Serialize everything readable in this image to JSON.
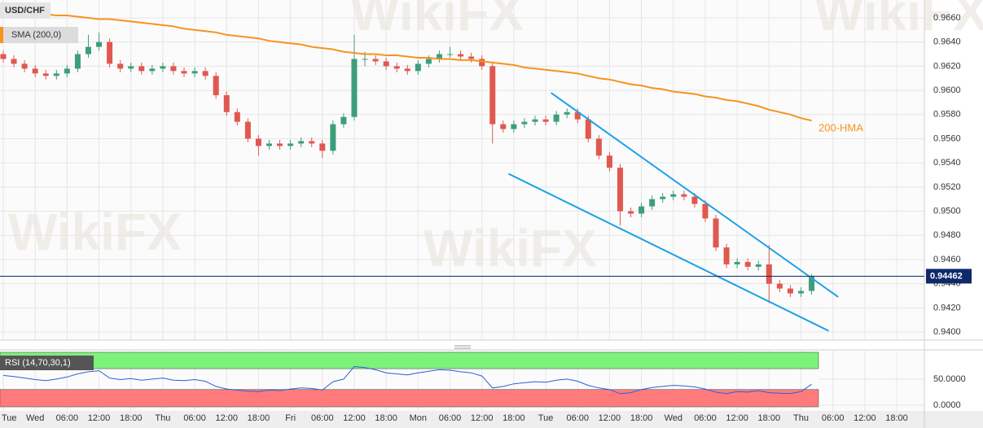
{
  "chart_data": [
    {
      "type": "candlestick",
      "title": "USD/CHF",
      "categories": [
        "Tue",
        null,
        null,
        "Wed",
        null,
        null,
        "06:00",
        null,
        null,
        "12:00",
        null,
        null,
        "18:00",
        null,
        null,
        "Thu",
        null,
        null,
        "06:00",
        null,
        null,
        "12:00",
        null,
        null,
        "18:00",
        null,
        null,
        "Fri",
        null,
        null,
        "06:00",
        null,
        null,
        "12:00",
        null,
        null,
        "18:00",
        null,
        null,
        "Mon",
        null,
        null,
        "06:00",
        null,
        null,
        "12:00",
        null,
        null,
        "18:00",
        null,
        null,
        "Tue",
        null,
        null,
        "06:00",
        null,
        null,
        "12:00",
        null,
        null,
        "18:00",
        null,
        null,
        "Wed",
        null,
        null,
        "06:00",
        null,
        null,
        "12:00",
        null,
        null,
        "18:00",
        null,
        null,
        "Thu",
        null,
        null,
        "06:00",
        null,
        null,
        "12:00",
        null,
        null,
        "18:00"
      ],
      "open": [
        0.963,
        0.9626,
        0.9622,
        0.9618,
        0.9614,
        0.9612,
        0.9614,
        0.9618,
        0.963,
        0.9636,
        0.964,
        0.9622,
        0.9618,
        0.962,
        0.9616,
        0.9618,
        0.962,
        0.9616,
        0.9614,
        0.9616,
        0.9612,
        0.9596,
        0.9582,
        0.9574,
        0.956,
        0.9554,
        0.9556,
        0.9554,
        0.9556,
        0.9558,
        0.9556,
        0.955,
        0.9572,
        0.9578,
        0.9626,
        0.9626,
        0.9624,
        0.962,
        0.9618,
        0.9616,
        0.9622,
        0.9626,
        0.963,
        0.963,
        0.9628,
        0.9626,
        0.962,
        0.9572,
        0.9568,
        0.9572,
        0.9574,
        0.9576,
        0.9574,
        0.958,
        0.9582,
        0.9576,
        0.956,
        0.9546,
        0.9536,
        0.95,
        0.9498,
        0.9504,
        0.951,
        0.9512,
        0.9514,
        0.9512,
        0.9506,
        0.9494,
        0.947,
        0.9456,
        0.9458,
        0.9454,
        0.9456,
        0.944,
        0.9436,
        0.9432,
        0.9434,
        null,
        null,
        null,
        null,
        null,
        null,
        null,
        null
      ],
      "high": [
        0.9633,
        0.9629,
        0.9625,
        0.9621,
        0.9617,
        0.9617,
        0.9621,
        0.9633,
        0.9646,
        0.9648,
        0.9643,
        0.9625,
        0.9623,
        0.9623,
        0.9621,
        0.9623,
        0.9623,
        0.9619,
        0.9619,
        0.9619,
        0.9615,
        0.9599,
        0.9585,
        0.9577,
        0.9563,
        0.9559,
        0.9559,
        0.9559,
        0.9561,
        0.9561,
        0.9559,
        0.9575,
        0.9581,
        0.9646,
        0.9632,
        0.9629,
        0.9627,
        0.9623,
        0.9621,
        0.9625,
        0.9629,
        0.9633,
        0.9636,
        0.9633,
        0.9631,
        0.9629,
        0.9623,
        0.9575,
        0.9575,
        0.9577,
        0.9579,
        0.9579,
        0.9583,
        0.9585,
        0.9585,
        0.9579,
        0.9563,
        0.9549,
        0.9539,
        0.9503,
        0.9507,
        0.9513,
        0.9515,
        0.9517,
        0.9517,
        0.9515,
        0.9509,
        0.9497,
        0.9473,
        0.9461,
        0.9461,
        0.9459,
        0.9472,
        0.9443,
        0.9439,
        0.9437,
        0.9448,
        null,
        null,
        null,
        null,
        null,
        null,
        null,
        null
      ],
      "low": [
        0.9623,
        0.9619,
        0.9615,
        0.9611,
        0.9609,
        0.9609,
        0.9611,
        0.9615,
        0.9627,
        0.9633,
        0.9619,
        0.9615,
        0.9615,
        0.9613,
        0.9613,
        0.9615,
        0.9613,
        0.9611,
        0.9611,
        0.9609,
        0.9593,
        0.9579,
        0.9571,
        0.9557,
        0.9546,
        0.9551,
        0.9551,
        0.9551,
        0.9553,
        0.9553,
        0.9544,
        0.9547,
        0.9569,
        0.9575,
        0.962,
        0.9621,
        0.9617,
        0.9615,
        0.9613,
        0.9613,
        0.9619,
        0.9623,
        0.9627,
        0.9625,
        0.9623,
        0.9617,
        0.9556,
        0.9565,
        0.9565,
        0.9569,
        0.9571,
        0.9571,
        0.9571,
        0.9577,
        0.9573,
        0.9557,
        0.9543,
        0.9533,
        0.9488,
        0.9495,
        0.9495,
        0.9501,
        0.9507,
        0.9509,
        0.9509,
        0.9503,
        0.9491,
        0.9467,
        0.9453,
        0.9453,
        0.9451,
        0.9451,
        0.9424,
        0.9433,
        0.9429,
        0.9429,
        0.9431,
        null,
        null,
        null,
        null,
        null,
        null,
        null,
        null
      ],
      "close": [
        0.9626,
        0.9622,
        0.9618,
        0.9614,
        0.9612,
        0.9614,
        0.9618,
        0.963,
        0.9636,
        0.964,
        0.9622,
        0.9618,
        0.962,
        0.9616,
        0.9618,
        0.962,
        0.9616,
        0.9614,
        0.9616,
        0.9612,
        0.9596,
        0.9582,
        0.9574,
        0.956,
        0.9554,
        0.9556,
        0.9554,
        0.9556,
        0.9558,
        0.9556,
        0.955,
        0.9572,
        0.9578,
        0.9626,
        0.9626,
        0.9624,
        0.962,
        0.9618,
        0.9616,
        0.9622,
        0.9626,
        0.963,
        0.963,
        0.9628,
        0.9626,
        0.962,
        0.9572,
        0.9568,
        0.9572,
        0.9574,
        0.9576,
        0.9574,
        0.958,
        0.9582,
        0.9576,
        0.956,
        0.9546,
        0.9536,
        0.95,
        0.9498,
        0.9504,
        0.951,
        0.9512,
        0.9514,
        0.9512,
        0.9506,
        0.9494,
        0.947,
        0.9456,
        0.9458,
        0.9454,
        0.9456,
        0.944,
        0.9436,
        0.9432,
        0.9434,
        0.94462,
        null,
        null,
        null,
        null,
        null,
        null,
        null,
        null
      ],
      "up_color": "#3d9e7a",
      "down_color": "#e0584f",
      "series": [
        {
          "name": "SMA (200,0)",
          "color": "#f7931e",
          "values": [
            0.9666,
            0.9665,
            0.9665,
            0.9664,
            0.9663,
            0.9662,
            0.9662,
            0.9661,
            0.966,
            0.9659,
            0.9659,
            0.9658,
            0.9657,
            0.9656,
            0.9655,
            0.9654,
            0.9653,
            0.9651,
            0.965,
            0.9649,
            0.9648,
            0.9646,
            0.9645,
            0.9644,
            0.9643,
            0.9641,
            0.964,
            0.9639,
            0.9638,
            0.9636,
            0.9635,
            0.9634,
            0.9632,
            0.9631,
            0.963,
            0.963,
            0.9629,
            0.9629,
            0.9628,
            0.9627,
            0.9627,
            0.9626,
            0.9626,
            0.9625,
            0.9625,
            0.9624,
            0.9623,
            0.9622,
            0.9621,
            0.9619,
            0.9618,
            0.9617,
            0.9616,
            0.9615,
            0.9614,
            0.9612,
            0.961,
            0.9609,
            0.9607,
            0.9605,
            0.9604,
            0.9602,
            0.9601,
            0.9599,
            0.9598,
            0.9597,
            0.9595,
            0.9594,
            0.9592,
            0.9591,
            0.9589,
            0.9587,
            0.9584,
            0.9582,
            0.958,
            0.9577,
            0.9575,
            null,
            null,
            null,
            null,
            null,
            null,
            null,
            null
          ]
        }
      ],
      "annotations": [
        "200-HMA"
      ],
      "trendlines": [
        {
          "x": [
            51.5,
            78.5
          ],
          "y": [
            0.9598,
            0.9429
          ],
          "color": "#1ba1e6"
        },
        {
          "x": [
            47.5,
            77.6
          ],
          "y": [
            0.9531,
            0.9401
          ],
          "color": "#1ba1e6"
        }
      ],
      "last_price_color": "#0e2a6b",
      "ylim": [
        0.93933,
        0.96748
      ],
      "yticks": [
        {
          "value": 0.94,
          "label": "0.9400"
        },
        {
          "value": 0.942,
          "label": "0.9420"
        },
        {
          "value": 0.944,
          "label": "0.9440"
        },
        {
          "value": 0.946,
          "label": "0.9460"
        },
        {
          "value": 0.948,
          "label": "0.9480"
        },
        {
          "value": 0.95,
          "label": "0.9500"
        },
        {
          "value": 0.952,
          "label": "0.9520"
        },
        {
          "value": 0.954,
          "label": "0.9540"
        },
        {
          "value": 0.956,
          "label": "0.9560"
        },
        {
          "value": 0.958,
          "label": "0.9580"
        },
        {
          "value": 0.96,
          "label": "0.9600"
        },
        {
          "value": 0.962,
          "label": "0.9620"
        },
        {
          "value": 0.964,
          "label": "0.9640"
        },
        {
          "value": 0.966,
          "label": "0.9660"
        }
      ],
      "grid": true,
      "watermark": "WikiFX"
    },
    {
      "type": "line",
      "title": "RSI (14,70,30,1)",
      "overbought": 70,
      "oversold": 30,
      "overbought_color": "#7cf27a",
      "oversold_color": "#ff7b7b",
      "series": [
        {
          "color": "#2d5fd6",
          "values": [
            57,
            55,
            52,
            49,
            47,
            50,
            54,
            60,
            64,
            66,
            52,
            49,
            51,
            48,
            50,
            52,
            48,
            47,
            49,
            46,
            36,
            31,
            29,
            27,
            26,
            29,
            28,
            31,
            33,
            32,
            29,
            45,
            50,
            74,
            72,
            68,
            62,
            60,
            58,
            62,
            65,
            68,
            67,
            64,
            62,
            56,
            33,
            36,
            41,
            43,
            45,
            44,
            48,
            50,
            46,
            38,
            33,
            30,
            22,
            24,
            30,
            34,
            36,
            38,
            37,
            35,
            31,
            25,
            22,
            26,
            25,
            28,
            24,
            23,
            22,
            26,
            40,
            null,
            null,
            null,
            null,
            null,
            null,
            null,
            null
          ]
        }
      ],
      "ylim": [
        -11,
        106
      ],
      "yticks": [
        {
          "value": 50,
          "label": "50.0000"
        },
        {
          "value": 0,
          "label": "0.0000"
        }
      ]
    }
  ]
}
